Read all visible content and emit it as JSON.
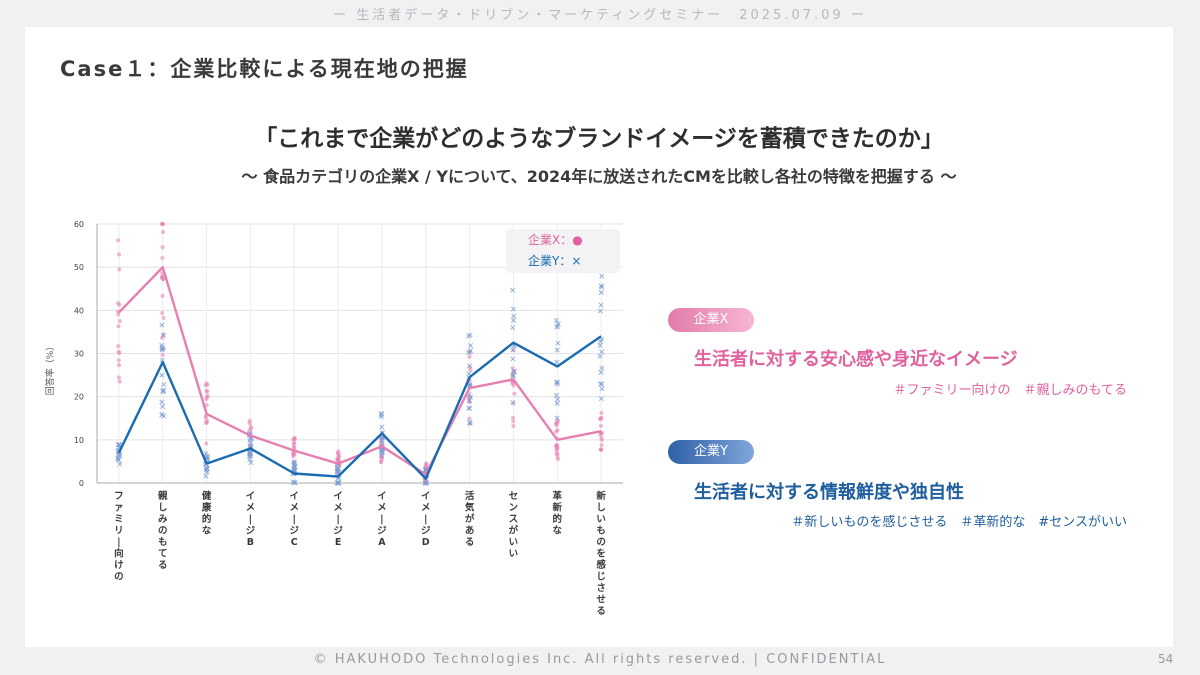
{
  "banner": "ー 生活者データ・ドリブン・マーケティングセミナー　2025.07.09 ー",
  "case_title": "Case１：企業比較による現在地の把握",
  "main_title": "「これまで企業がどのようなブランドイメージを蓄積できたのか」",
  "subtitle": "〜 食品カテゴリの企業X / Yについて、2024年に放送されたCMを比較し各社の特徴を把握する 〜",
  "colors": {
    "company_x": "#e77fb0",
    "company_y": "#1a6bb0",
    "company_y_points": "#7a9fd6"
  },
  "chart_data": {
    "type": "line",
    "ylabel": "回答率（%）",
    "ylim": [
      0,
      60
    ],
    "yticks": [
      0,
      10,
      20,
      30,
      40,
      50,
      60
    ],
    "grid": true,
    "legend_placement": "top-right",
    "categories": [
      "ファミリー向けの",
      "親しみのもてる",
      "健康的な",
      "イメージB",
      "イメージC",
      "イメージE",
      "イメージA",
      "イメージD",
      "活気がある",
      "センスがいい",
      "革新的な",
      "新しいものを感じさせる"
    ],
    "series": [
      {
        "name": "企業X：●",
        "marker": "circle",
        "values": [
          39.5,
          50,
          16,
          11,
          7.5,
          4.5,
          8.5,
          2,
          22,
          24,
          10,
          12
        ]
      },
      {
        "name": "企業Y：×",
        "marker": "x",
        "values": [
          7,
          28,
          4.5,
          8,
          2.2,
          1.5,
          11.5,
          1,
          24.5,
          32.5,
          27,
          34
        ]
      }
    ]
  },
  "company_x": {
    "badge": "企業X",
    "headline": "生活者に対する安心感や身近なイメージ",
    "tags": "＃ファミリー向けの　＃親しみのもてる"
  },
  "company_y": {
    "badge": "企業Y",
    "headline": "生活者に対する情報鮮度や独自性",
    "tags": "＃新しいものを感じさせる　＃革新的な　#センスがいい"
  },
  "footer": "© HAKUHODO Technologies Inc. All rights  reserved. | CONFIDENTIAL",
  "page_number": "54"
}
